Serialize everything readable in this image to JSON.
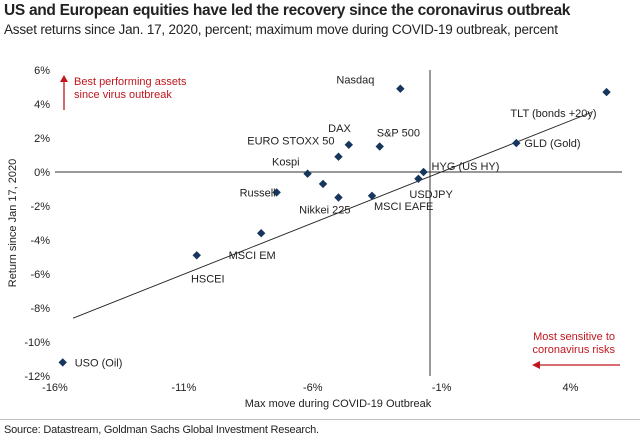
{
  "title": "US and European equities have led the recovery since the coronavirus outbreak",
  "subtitle": "Asset returns since Jan. 17, 2020, percent; maximum move during COVID-19 outbreak, percent",
  "source": "Source: Datastream, Goldman Sachs Global Investment Research.",
  "colors": {
    "marker": "#17365d",
    "annotation": "#c0171e",
    "trend": "#222222"
  },
  "chart_data": {
    "type": "scatter",
    "xlabel": "Max move during COVID-19 Outbreak",
    "ylabel": "Return since Jan 17, 2020",
    "xlim": [
      -16,
      6
    ],
    "ylim": [
      -12,
      6
    ],
    "x_ticks": [
      -16,
      -11,
      -6,
      -1,
      4
    ],
    "x_tick_labels": [
      "-16%",
      "-11%",
      "-6%",
      "-1%",
      "4%"
    ],
    "y_ticks": [
      6,
      4,
      2,
      0,
      -2,
      -4,
      -6,
      -8,
      -10,
      -12
    ],
    "y_tick_labels": [
      "6%",
      "4%",
      "2%",
      "0%",
      "-2%",
      "-4%",
      "-6%",
      "-8%",
      "-10%",
      "-12%"
    ],
    "grid": false,
    "trendline": {
      "x": [
        -15.3,
        4.8
      ],
      "y": [
        -8.6,
        3.5
      ]
    },
    "points": [
      {
        "label": "Nasdaq",
        "x": -2.6,
        "y": 4.9
      },
      {
        "label": "TLT (bonds +20y)",
        "x": 5.4,
        "y": 4.7
      },
      {
        "label": "DAX",
        "x": -4.6,
        "y": 1.6
      },
      {
        "label": "S&P 500",
        "x": -3.4,
        "y": 1.5
      },
      {
        "label": "GLD (Gold)",
        "x": 1.9,
        "y": 1.7
      },
      {
        "label": "EURO STOXX 50",
        "x": -5.0,
        "y": 0.9
      },
      {
        "label": "Kospi",
        "x": -6.2,
        "y": -0.1
      },
      {
        "label": "HYG (US HY)",
        "x": -1.7,
        "y": 0.0
      },
      {
        "label": "USDJPY",
        "x": -1.9,
        "y": -0.4
      },
      {
        "label": "Russell",
        "x": -7.4,
        "y": -1.2
      },
      {
        "label": "",
        "x": -5.6,
        "y": -0.7
      },
      {
        "label": "Nikkei 225",
        "x": -5.0,
        "y": -1.5
      },
      {
        "label": "MSCI EAFE",
        "x": -3.7,
        "y": -1.4
      },
      {
        "label": "MSCI EM",
        "x": -8.0,
        "y": -3.6
      },
      {
        "label": "HSCEI",
        "x": -10.5,
        "y": -4.9
      },
      {
        "label": "USO (Oil)",
        "x": -15.7,
        "y": -11.2
      }
    ],
    "annotations": [
      {
        "text_lines": [
          "Best performing assets",
          "since virus outbreak"
        ],
        "arrow": "up"
      },
      {
        "text_lines": [
          "Most sensitive to",
          "coronavirus risks"
        ],
        "arrow": "left"
      }
    ]
  }
}
